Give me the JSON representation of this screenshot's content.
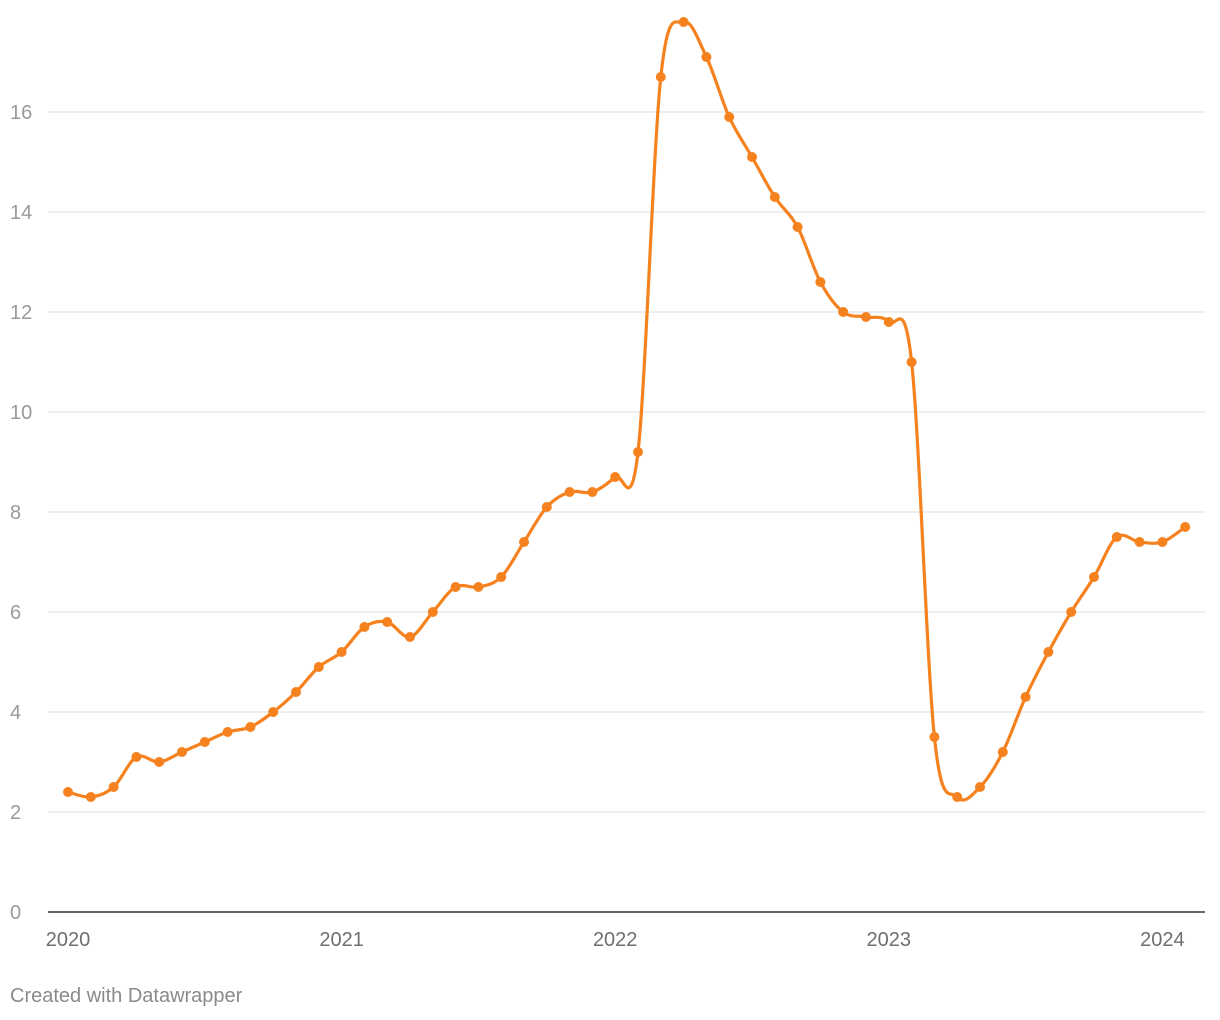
{
  "chart_data": {
    "type": "line",
    "title": "",
    "xlabel": "",
    "ylabel": "",
    "ylim": [
      0,
      18
    ],
    "grid": true,
    "y_ticks": [
      0,
      2,
      4,
      6,
      8,
      10,
      12,
      14,
      16
    ],
    "x_ticks": [
      {
        "label": "2020",
        "date": "2020-01"
      },
      {
        "label": "2021",
        "date": "2021-01"
      },
      {
        "label": "2022",
        "date": "2022-01"
      },
      {
        "label": "2023",
        "date": "2023-01"
      },
      {
        "label": "2024",
        "date": "2024-01"
      }
    ],
    "series": [
      {
        "color": "#f5821f",
        "x": [
          "2020-01",
          "2020-02",
          "2020-03",
          "2020-04",
          "2020-05",
          "2020-06",
          "2020-07",
          "2020-08",
          "2020-09",
          "2020-10",
          "2020-11",
          "2020-12",
          "2021-01",
          "2021-02",
          "2021-03",
          "2021-04",
          "2021-05",
          "2021-06",
          "2021-07",
          "2021-08",
          "2021-09",
          "2021-10",
          "2021-11",
          "2021-12",
          "2022-01",
          "2022-02",
          "2022-03",
          "2022-04",
          "2022-05",
          "2022-06",
          "2022-07",
          "2022-08",
          "2022-09",
          "2022-10",
          "2022-11",
          "2022-12",
          "2023-01",
          "2023-02",
          "2023-03",
          "2023-04",
          "2023-05",
          "2023-06",
          "2023-07",
          "2023-08",
          "2023-09",
          "2023-10",
          "2023-11",
          "2023-12",
          "2024-01",
          "2024-02"
        ],
        "values": [
          2.4,
          2.3,
          2.5,
          3.1,
          3.0,
          3.2,
          3.4,
          3.6,
          3.7,
          4.0,
          4.4,
          4.9,
          5.2,
          5.7,
          5.8,
          5.5,
          6.0,
          6.5,
          6.5,
          6.7,
          7.4,
          8.1,
          8.4,
          8.4,
          8.7,
          9.2,
          16.7,
          17.8,
          17.1,
          15.9,
          15.1,
          14.3,
          13.7,
          12.6,
          12.0,
          11.9,
          11.8,
          11.0,
          3.5,
          2.3,
          2.5,
          3.2,
          4.3,
          5.2,
          6.0,
          6.7,
          7.5,
          7.4,
          7.4,
          7.7
        ]
      }
    ]
  },
  "colors": {
    "line": "#f5821f",
    "gridline": "#e3e3e3",
    "baseline": "#333333",
    "tick_text": "#9a9a9a",
    "x_tick_text": "#6f6f6f"
  },
  "footer": {
    "credit": "Created with Datawrapper"
  }
}
